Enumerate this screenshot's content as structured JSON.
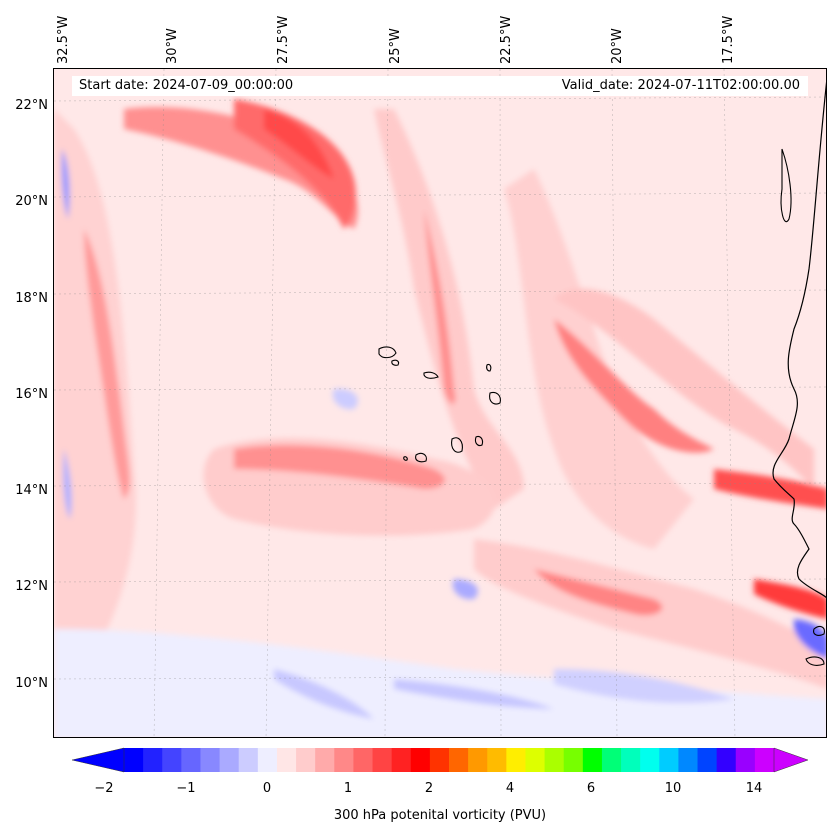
{
  "map": {
    "start_date": "Start date: 2024-07-09_00:00:00",
    "valid_date": "Valid_date: 2024-07-11T02:00:00.00",
    "lon_labels": [
      "32.5°W",
      "30°W",
      "27.5°W",
      "25°W",
      "22.5°W",
      "20°W",
      "17.5°W"
    ],
    "lat_labels": [
      "22°N",
      "20°N",
      "18°N",
      "16°N",
      "14°N",
      "12°N",
      "10°N"
    ],
    "features": [
      "coastline-west-africa",
      "cape-verde-islands",
      "pv-contours"
    ]
  },
  "colorbar": {
    "title": "300 hPa potenital vorticity (PVU)",
    "tick_labels": [
      "−2",
      "−1",
      "0",
      "1",
      "2",
      "4",
      "6",
      "10",
      "14"
    ],
    "colors": [
      "#0000ff",
      "#2222ff",
      "#4444ff",
      "#6666ff",
      "#8888ff",
      "#aaaaff",
      "#ccccff",
      "#eeeeff",
      "#ffe6e6",
      "#ffcccc",
      "#ffaaaa",
      "#ff8888",
      "#ff6666",
      "#ff4444",
      "#ff2222",
      "#ff0000",
      "#ff3300",
      "#ff6600",
      "#ff9900",
      "#ffbb00",
      "#ffee00",
      "#ddff00",
      "#aaff00",
      "#77ff00",
      "#00ff00",
      "#00ff77",
      "#00ffbb",
      "#00ffee",
      "#00ccff",
      "#0088ff",
      "#0044ff",
      "#3300ff",
      "#9900ff",
      "#cc00ff"
    ]
  }
}
